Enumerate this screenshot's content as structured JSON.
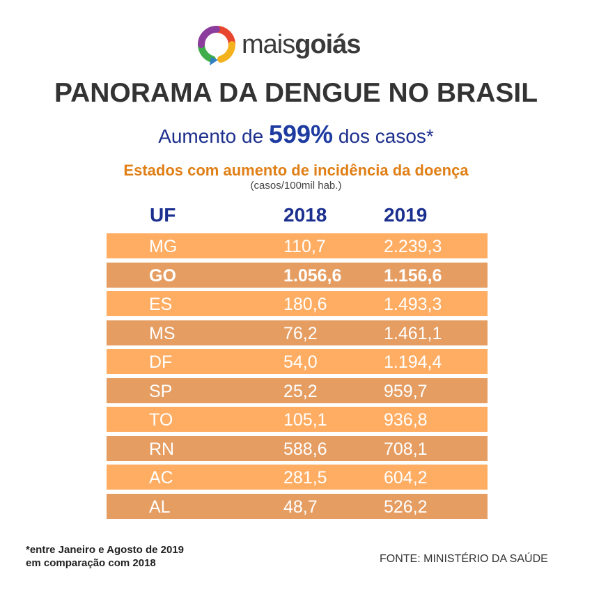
{
  "brand": {
    "name_regular": "mais",
    "name_bold": "goiás"
  },
  "header": {
    "title": "PANORAMA DA DENGUE NO BRASIL",
    "subtitle_before": "Aumento de ",
    "subtitle_highlight": "599%",
    "subtitle_after": " dos casos*",
    "section_title": "Estados com aumento de incidência da doença",
    "unit": "(casos/100mil hab.)"
  },
  "chart_data": {
    "type": "table",
    "columns": [
      "UF",
      "2018",
      "2019"
    ],
    "rows": [
      [
        "MG",
        "110,7",
        "2.239,3"
      ],
      [
        "GO",
        "1.056,6",
        "1.156,6"
      ],
      [
        "ES",
        "180,6",
        "1.493,3"
      ],
      [
        "MS",
        "76,2",
        "1.461,1"
      ],
      [
        "DF",
        "54,0",
        "1.194,4"
      ],
      [
        "SP",
        "25,2",
        "959,7"
      ],
      [
        "TO",
        "105,1",
        "936,8"
      ],
      [
        "RN",
        "588,6",
        "708,1"
      ],
      [
        "AC",
        "281,5",
        "604,2"
      ],
      [
        "AL",
        "48,7",
        "526,2"
      ]
    ],
    "highlight_row": "GO",
    "colors": {
      "row_light": "#ffad63",
      "row_dark": "#e59d62",
      "header_text": "#1b2f8f"
    }
  },
  "footer": {
    "note_line1": "*entre Janeiro e Agosto de 2019",
    "note_line2": "em comparação com 2018",
    "source": "FONTE: MINISTÉRIO DA SAÚDE"
  },
  "colors": {
    "title": "#333333",
    "subtitle": "#1d2f8c",
    "section": "#e07f16"
  }
}
